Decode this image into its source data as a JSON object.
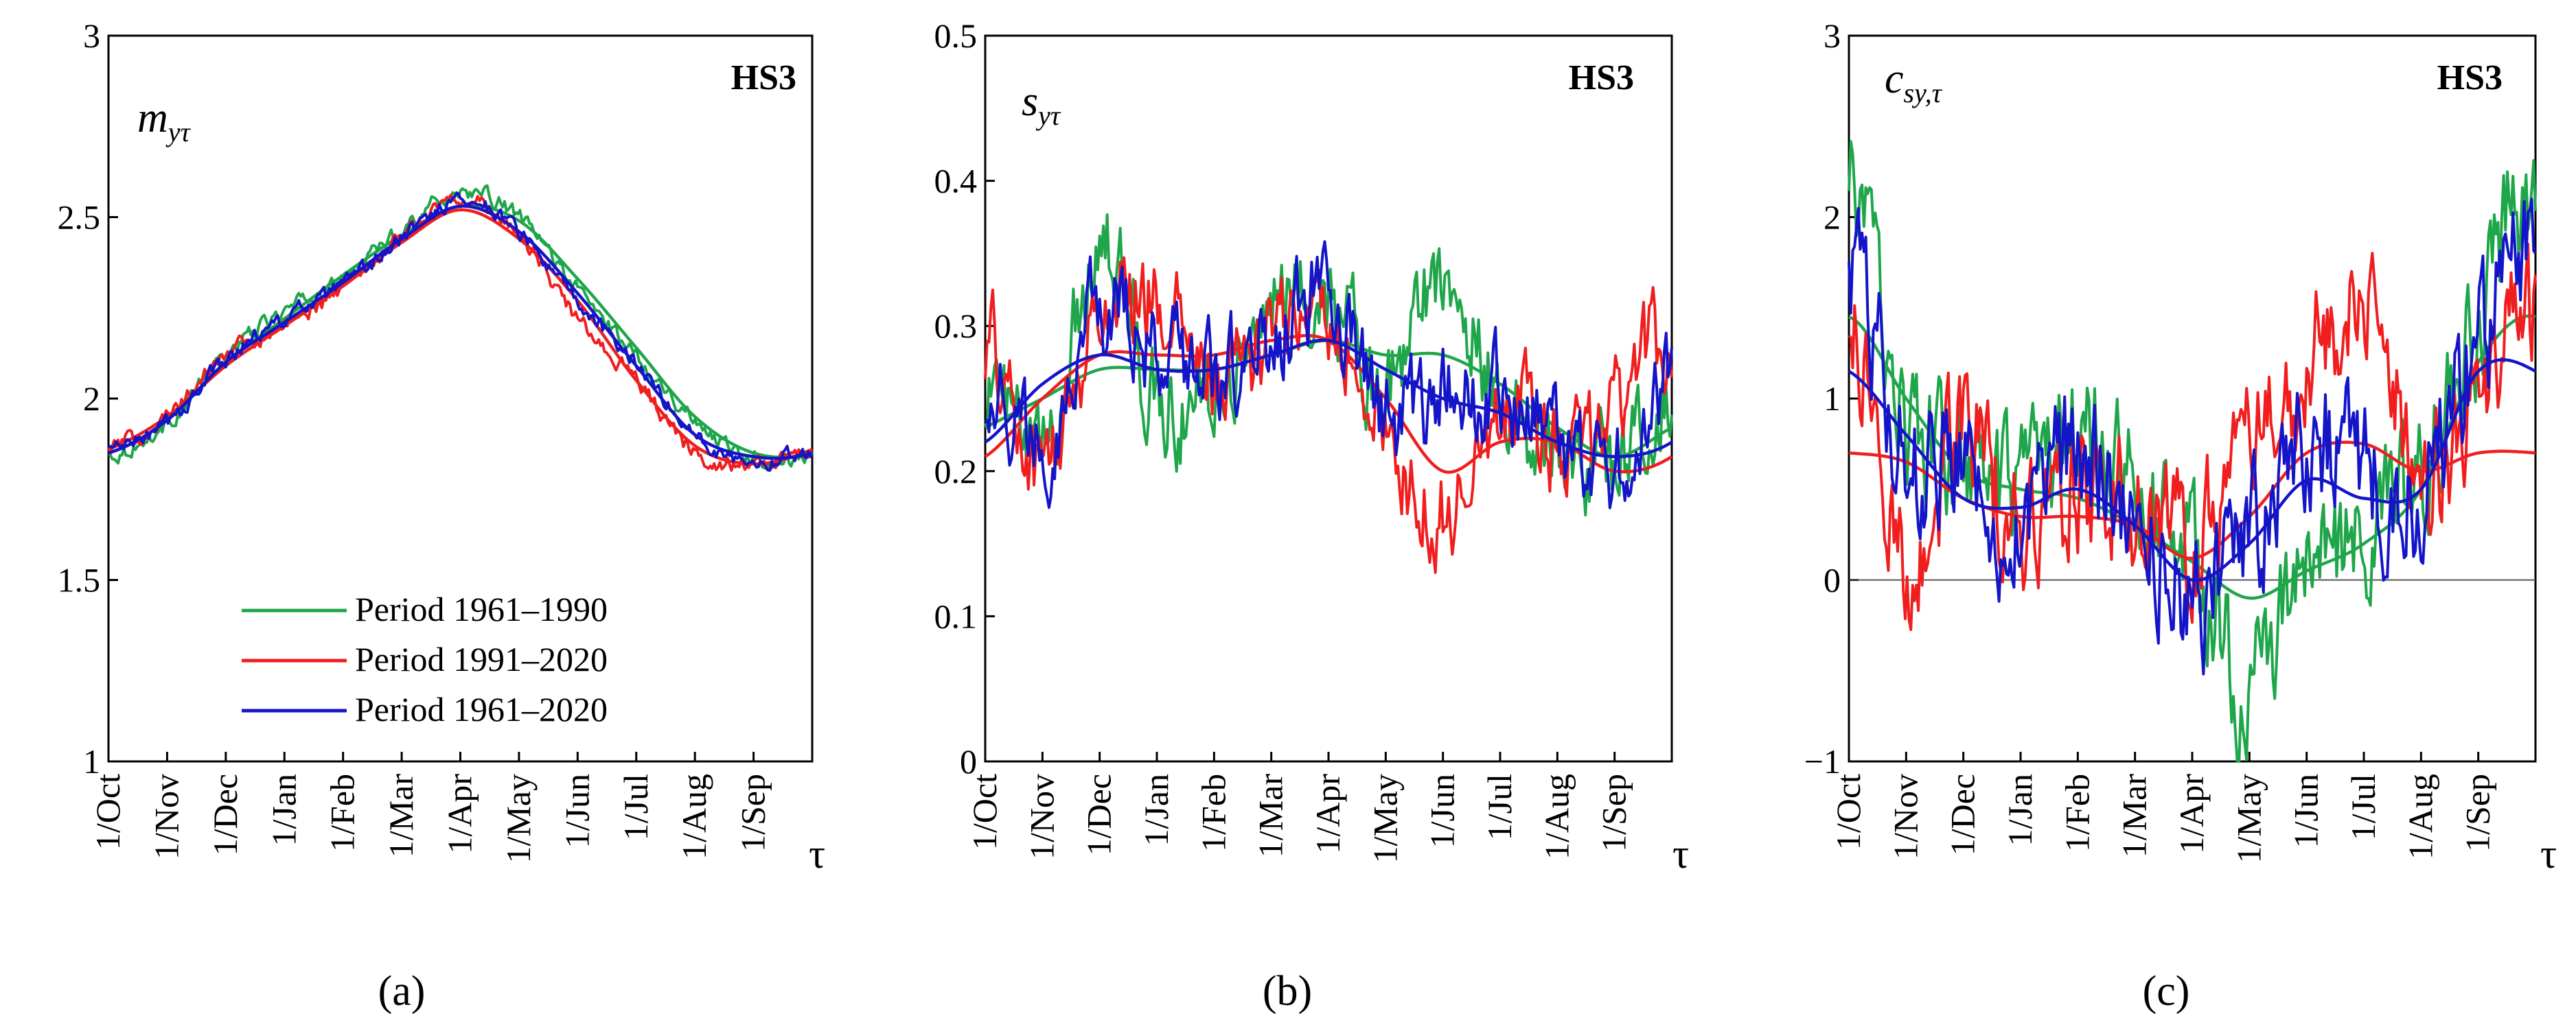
{
  "figure": {
    "station": "HS3",
    "month_labels": [
      "1/Oct",
      "1/Nov",
      "1/Dec",
      "1/Jan",
      "1/Feb",
      "1/Mar",
      "1/Apr",
      "1/May",
      "1/Jun",
      "1/Jul",
      "1/Aug",
      "1/Sep"
    ],
    "x_symbol": "τ",
    "legend": [
      "Period 1961–1990",
      "Period 1991–2020",
      "Period 1961–2020"
    ],
    "colors": {
      "p1": "#1fa64a",
      "p2": "#f01e1e",
      "p3": "#1414c8"
    }
  },
  "chart_data": [
    {
      "id": "a",
      "type": "line",
      "panel_label": "(a)",
      "ylabel_main": "m",
      "ylabel_sub": "yτ",
      "title": "HS3",
      "xlabel": "τ",
      "ylim": [
        1,
        3
      ],
      "yticks": [
        1,
        1.5,
        2,
        2.5,
        3
      ],
      "ytick_labels": [
        "1",
        "1.5",
        "2",
        "2.5",
        "3"
      ],
      "categories": [
        "1/Oct",
        "1/Nov",
        "1/Dec",
        "1/Jan",
        "1/Feb",
        "1/Mar",
        "1/Apr",
        "1/May",
        "1/Jun",
        "1/Jul",
        "1/Aug",
        "1/Sep"
      ],
      "legend_position": "bottom-center",
      "series": [
        {
          "name": "Period 1961–1990",
          "key": "p1",
          "values": [
            1.84,
            1.93,
            2.12,
            2.24,
            2.33,
            2.47,
            2.57,
            2.5,
            2.3,
            2.12,
            1.94,
            1.84
          ],
          "smooth": [
            1.85,
            1.94,
            2.1,
            2.22,
            2.34,
            2.45,
            2.53,
            2.49,
            2.33,
            2.14,
            1.95,
            1.85
          ]
        },
        {
          "name": "Period 1991–2020",
          "key": "p2",
          "values": [
            1.86,
            1.95,
            2.12,
            2.2,
            2.31,
            2.45,
            2.55,
            2.45,
            2.22,
            2.05,
            1.85,
            1.82
          ],
          "smooth": [
            1.86,
            1.95,
            2.09,
            2.2,
            2.31,
            2.43,
            2.52,
            2.44,
            2.27,
            2.05,
            1.87,
            1.82
          ]
        },
        {
          "name": "Period 1961–2020",
          "key": "p3",
          "values": [
            1.86,
            1.93,
            2.11,
            2.22,
            2.31,
            2.44,
            2.55,
            2.46,
            2.26,
            2.1,
            1.9,
            1.83
          ],
          "smooth": [
            1.85,
            1.94,
            2.1,
            2.21,
            2.32,
            2.44,
            2.53,
            2.46,
            2.29,
            2.09,
            1.9,
            1.84
          ]
        }
      ]
    },
    {
      "id": "b",
      "type": "line",
      "panel_label": "(b)",
      "ylabel_main": "s",
      "ylabel_sub": "yτ",
      "title": "HS3",
      "xlabel": "τ",
      "ylim": [
        0,
        0.5
      ],
      "yticks": [
        0,
        0.1,
        0.2,
        0.3,
        0.4,
        0.5
      ],
      "ytick_labels": [
        "0",
        "0.1",
        "0.2",
        "0.3",
        "0.4",
        "0.5"
      ],
      "categories": [
        "1/Oct",
        "1/Nov",
        "1/Dec",
        "1/Jan",
        "1/Feb",
        "1/Mar",
        "1/Apr",
        "1/May",
        "1/Jun",
        "1/Jul",
        "1/Aug",
        "1/Sep"
      ],
      "series": [
        {
          "name": "Period 1961–1990",
          "key": "p1",
          "values": [
            0.26,
            0.21,
            0.36,
            0.25,
            0.26,
            0.31,
            0.32,
            0.26,
            0.34,
            0.25,
            0.22,
            0.2
          ],
          "smooth": [
            0.23,
            0.25,
            0.27,
            0.27,
            0.27,
            0.28,
            0.29,
            0.28,
            0.28,
            0.26,
            0.23,
            0.21
          ]
        },
        {
          "name": "Period 1991–2020",
          "key": "p2",
          "values": [
            0.29,
            0.2,
            0.31,
            0.32,
            0.26,
            0.29,
            0.31,
            0.22,
            0.17,
            0.25,
            0.22,
            0.24
          ],
          "smooth": [
            0.21,
            0.25,
            0.28,
            0.28,
            0.28,
            0.29,
            0.29,
            0.25,
            0.2,
            0.22,
            0.22,
            0.2
          ]
        },
        {
          "name": "Period 1961–2020",
          "key": "p3",
          "values": [
            0.26,
            0.22,
            0.31,
            0.28,
            0.27,
            0.29,
            0.32,
            0.24,
            0.25,
            0.25,
            0.22,
            0.2
          ],
          "smooth": [
            0.22,
            0.26,
            0.28,
            0.27,
            0.27,
            0.28,
            0.29,
            0.27,
            0.25,
            0.24,
            0.22,
            0.21
          ]
        }
      ]
    },
    {
      "id": "c",
      "type": "line",
      "panel_label": "(c)",
      "ylabel_main": "c",
      "ylabel_sub": "sy,τ",
      "title": "HS3",
      "xlabel": "τ",
      "ylim": [
        -1,
        3
      ],
      "yticks": [
        -1,
        0,
        1,
        2,
        3
      ],
      "ytick_labels": [
        "−1",
        "0",
        "1",
        "2",
        "3"
      ],
      "zero_line": true,
      "categories": [
        "1/Oct",
        "1/Nov",
        "1/Dec",
        "1/Jan",
        "1/Feb",
        "1/Mar",
        "1/Apr",
        "1/May",
        "1/Jun",
        "1/Jul",
        "1/Aug",
        "1/Sep"
      ],
      "series": [
        {
          "name": "Period 1961–1990",
          "key": "p1",
          "values": [
            2.2,
            0.9,
            0.6,
            0.4,
            0.8,
            0.5,
            0.1,
            -0.6,
            0.1,
            0.2,
            0.6,
            1.4
          ],
          "smooth": [
            1.45,
            1.0,
            0.6,
            0.5,
            0.45,
            0.3,
            0.1,
            -0.1,
            0.05,
            0.2,
            0.5,
            1.2
          ]
        },
        {
          "name": "Period 1991–2020",
          "key": "p2",
          "values": [
            1.4,
            0.1,
            0.8,
            0.3,
            0.5,
            0.4,
            0.2,
            0.7,
            1.2,
            1.5,
            0.6,
            1.0
          ],
          "smooth": [
            0.7,
            0.65,
            0.45,
            0.35,
            0.35,
            0.3,
            0.12,
            0.35,
            0.7,
            0.75,
            0.6,
            0.7
          ]
        },
        {
          "name": "Period 1961–2020",
          "key": "p3",
          "values": [
            1.8,
            0.7,
            0.7,
            0.3,
            0.7,
            0.4,
            -0.1,
            0.2,
            0.8,
            0.6,
            0.5,
            1.3
          ],
          "smooth": [
            1.15,
            0.8,
            0.45,
            0.4,
            0.5,
            0.3,
            0.0,
            0.2,
            0.55,
            0.45,
            0.5,
            1.15
          ]
        }
      ]
    }
  ]
}
